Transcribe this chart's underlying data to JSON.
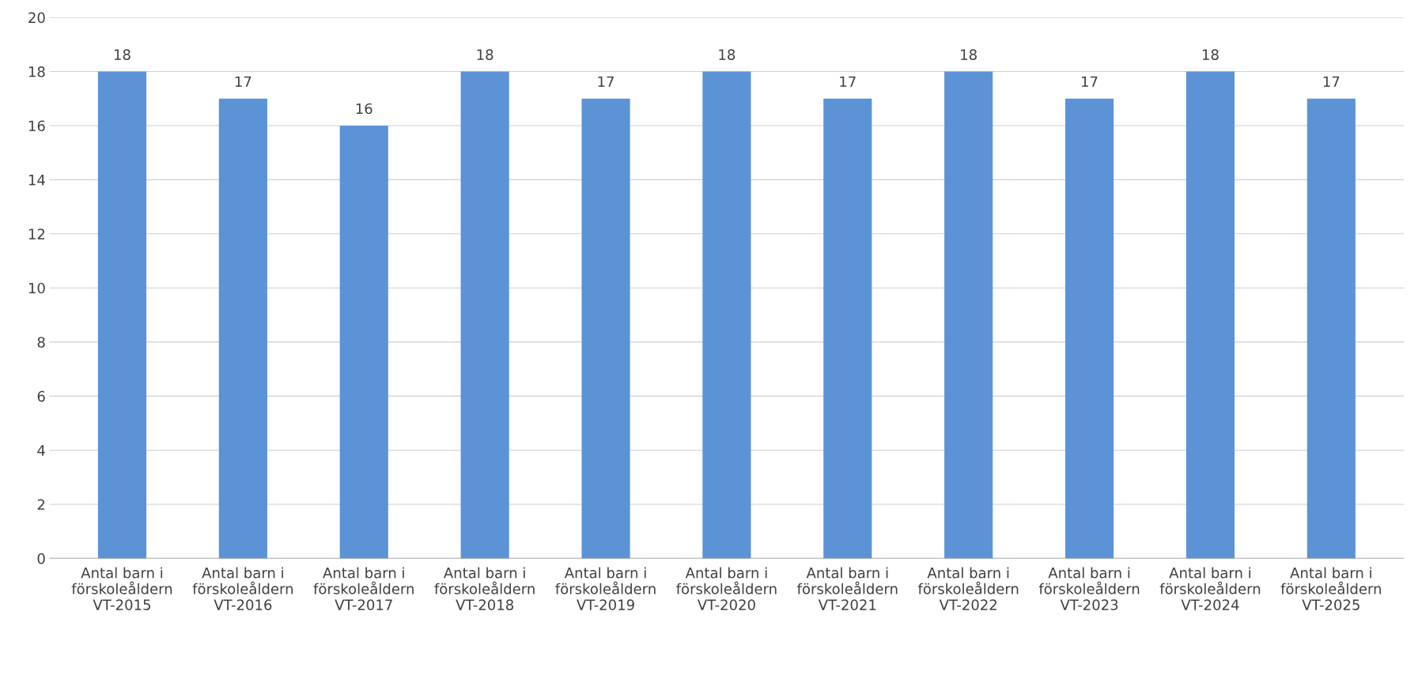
{
  "chart_data": {
    "type": "bar",
    "categories": [
      "Antal barn i\nförskoleåldern\nVT-2015",
      "Antal barn i\nförskoleåldern\nVT-2016",
      "Antal barn i\nförskoleåldern\nVT-2017",
      "Antal barn i\nförskoleåldern\nVT-2018",
      "Antal barn i\nförskoleåldern\nVT-2019",
      "Antal barn i\nförskoleåldern\nVT-2020",
      "Antal barn i\nförskoleåldern\nVT-2021",
      "Antal barn i\nförskoleåldern\nVT-2022",
      "Antal barn i\nförskoleåldern\nVT-2023",
      "Antal barn i\nförskoleåldern\nVT-2024",
      "Antal barn i\nförskoleåldern\nVT-2025"
    ],
    "values": [
      18,
      17,
      16,
      18,
      17,
      18,
      17,
      18,
      17,
      18,
      17
    ],
    "color": "#5b93d6",
    "ylim": [
      0,
      20
    ],
    "yticks": [
      0,
      2,
      4,
      6,
      8,
      10,
      12,
      14,
      16,
      18,
      20
    ],
    "grid": "y",
    "data_labels": true
  }
}
